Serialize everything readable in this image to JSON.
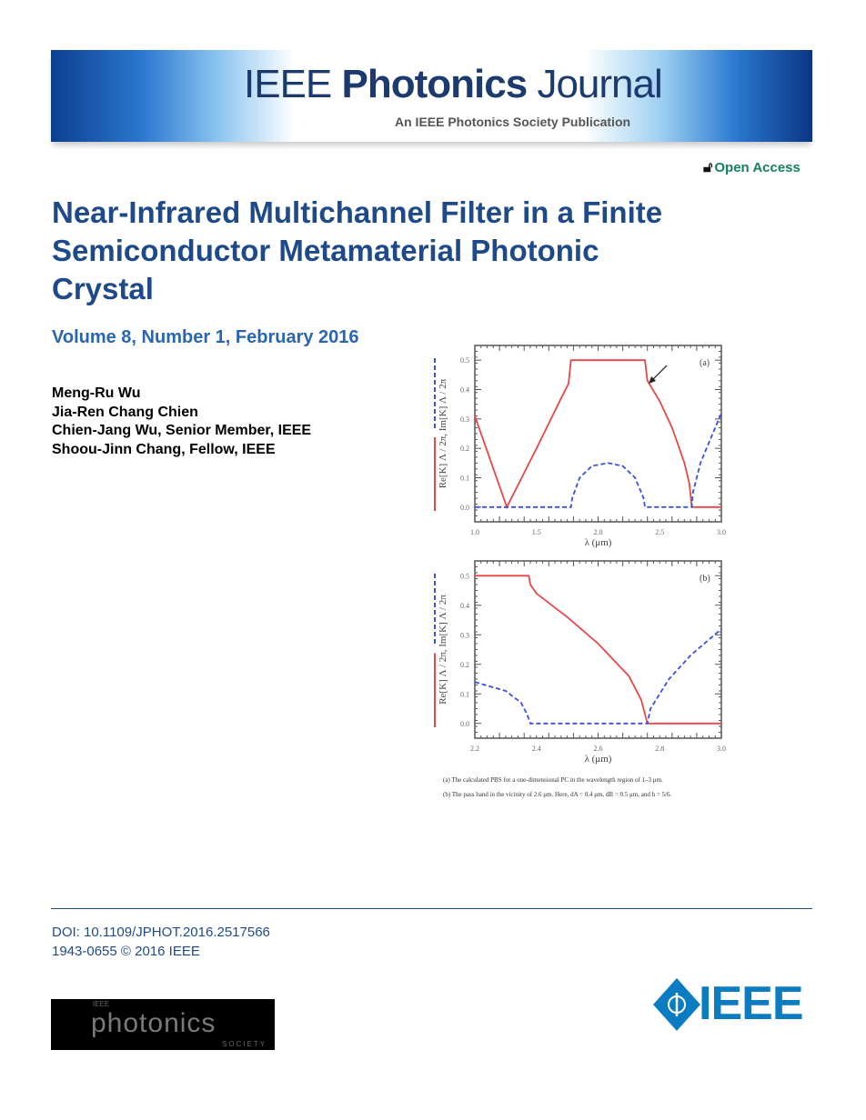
{
  "header": {
    "journal_prefix": "IEEE",
    "journal_bold": "Photonics",
    "journal_suffix": "Journal",
    "subtitle": "An IEEE Photonics Society Publication",
    "open_access": "Open Access",
    "icon": "open-lock-icon"
  },
  "article": {
    "title": "Near-Infrared Multichannel Filter in a Finite Semiconductor Metamaterial Photonic Crystal",
    "volume": "Volume 8, Number 1, February 2016",
    "authors": [
      "Meng-Ru Wu",
      "Jia-Ren Chang Chien",
      "Chien-Jang Wu, Senior Member, IEEE",
      "Shoou-Jinn Chang, Fellow, IEEE"
    ]
  },
  "figure": {
    "caption_a": "(a) The calculated PBS for a one-dimensional PC in the wavelength region of 1–3 μm.",
    "caption_b": "(b) The pass band in the vicinity of 2.6 μm. Here, dA = 0.4 μm, dB = 0.5 μm, and h = 5/6."
  },
  "chart_data": [
    {
      "type": "line",
      "panel_label": "(a)",
      "xlabel": "λ (μm)",
      "ylabel_re": "Re[K] Λ / 2π,",
      "ylabel_im": "Im[K] Λ / 2π",
      "xlim": [
        1.0,
        3.0
      ],
      "ylim": [
        -0.05,
        0.55
      ],
      "xticks": [
        "1.0",
        "1.5",
        "2.0",
        "2.5",
        "3.0"
      ],
      "xtick_values": [
        1.0,
        1.5,
        2.0,
        2.5,
        3.0
      ],
      "yticks": [
        "0.0",
        "0.1",
        "0.2",
        "0.3",
        "0.4",
        "0.5"
      ],
      "ytick_values": [
        0,
        0.1,
        0.2,
        0.3,
        0.4,
        0.5
      ],
      "annotation": {
        "type": "arrow",
        "points_to": [
          2.41,
          0.42
        ]
      },
      "series": [
        {
          "style": "solid",
          "color": "#e8474a",
          "x": [
            1.0,
            1.26,
            1.5,
            1.7,
            1.76,
            1.78,
            2.38,
            2.4,
            2.5,
            2.6,
            2.7,
            2.74,
            2.76,
            3.0
          ],
          "y": [
            0.31,
            0,
            0.2,
            0.37,
            0.42,
            0.5,
            0.5,
            0.43,
            0.36,
            0.27,
            0.15,
            0.08,
            0,
            0
          ]
        },
        {
          "style": "dashed",
          "color": "#3b4fe0",
          "x": [
            1.0,
            1.78,
            1.79,
            1.85,
            1.95,
            2.08,
            2.2,
            2.3,
            2.37,
            2.38,
            2.76,
            2.77,
            2.83,
            2.9,
            3.0
          ],
          "y": [
            0,
            0,
            0.03,
            0.1,
            0.14,
            0.15,
            0.14,
            0.1,
            0.03,
            0,
            0,
            0.05,
            0.15,
            0.22,
            0.32
          ]
        }
      ]
    },
    {
      "type": "line",
      "panel_label": "(b)",
      "xlabel": "λ (μm)",
      "ylabel_re": "Re[K] Λ / 2π,",
      "ylabel_im": "Im[K] Λ / 2π",
      "xlim": [
        2.2,
        3.0
      ],
      "ylim": [
        -0.05,
        0.55
      ],
      "xticks": [
        "2.2",
        "2.4",
        "2.6",
        "2.8",
        "3.0"
      ],
      "xtick_values": [
        2.2,
        2.4,
        2.6,
        2.8,
        3.0
      ],
      "yticks": [
        "0.0",
        "0.1",
        "0.2",
        "0.3",
        "0.4",
        "0.5"
      ],
      "ytick_values": [
        0,
        0.1,
        0.2,
        0.3,
        0.4,
        0.5
      ],
      "series": [
        {
          "style": "solid",
          "color": "#e8474a",
          "x": [
            2.2,
            2.375,
            2.38,
            2.4,
            2.5,
            2.6,
            2.7,
            2.74,
            2.76,
            3.0
          ],
          "y": [
            0.5,
            0.5,
            0.47,
            0.44,
            0.36,
            0.27,
            0.16,
            0.08,
            0,
            0
          ]
        },
        {
          "style": "dashed",
          "color": "#3b4fe0",
          "x": [
            2.2,
            2.3,
            2.35,
            2.37,
            2.38,
            2.76,
            2.77,
            2.83,
            2.9,
            3.0
          ],
          "y": [
            0.14,
            0.11,
            0.07,
            0.03,
            0,
            0,
            0.05,
            0.15,
            0.23,
            0.32
          ]
        }
      ]
    }
  ],
  "footer": {
    "doi": "DOI: 10.1109/JPHOT.2016.2517566",
    "issn": "1943-0655 © 2016 IEEE",
    "society_logo_text": "IEEE photonics SOCIETY",
    "ieee_logo_text": "IEEE"
  }
}
